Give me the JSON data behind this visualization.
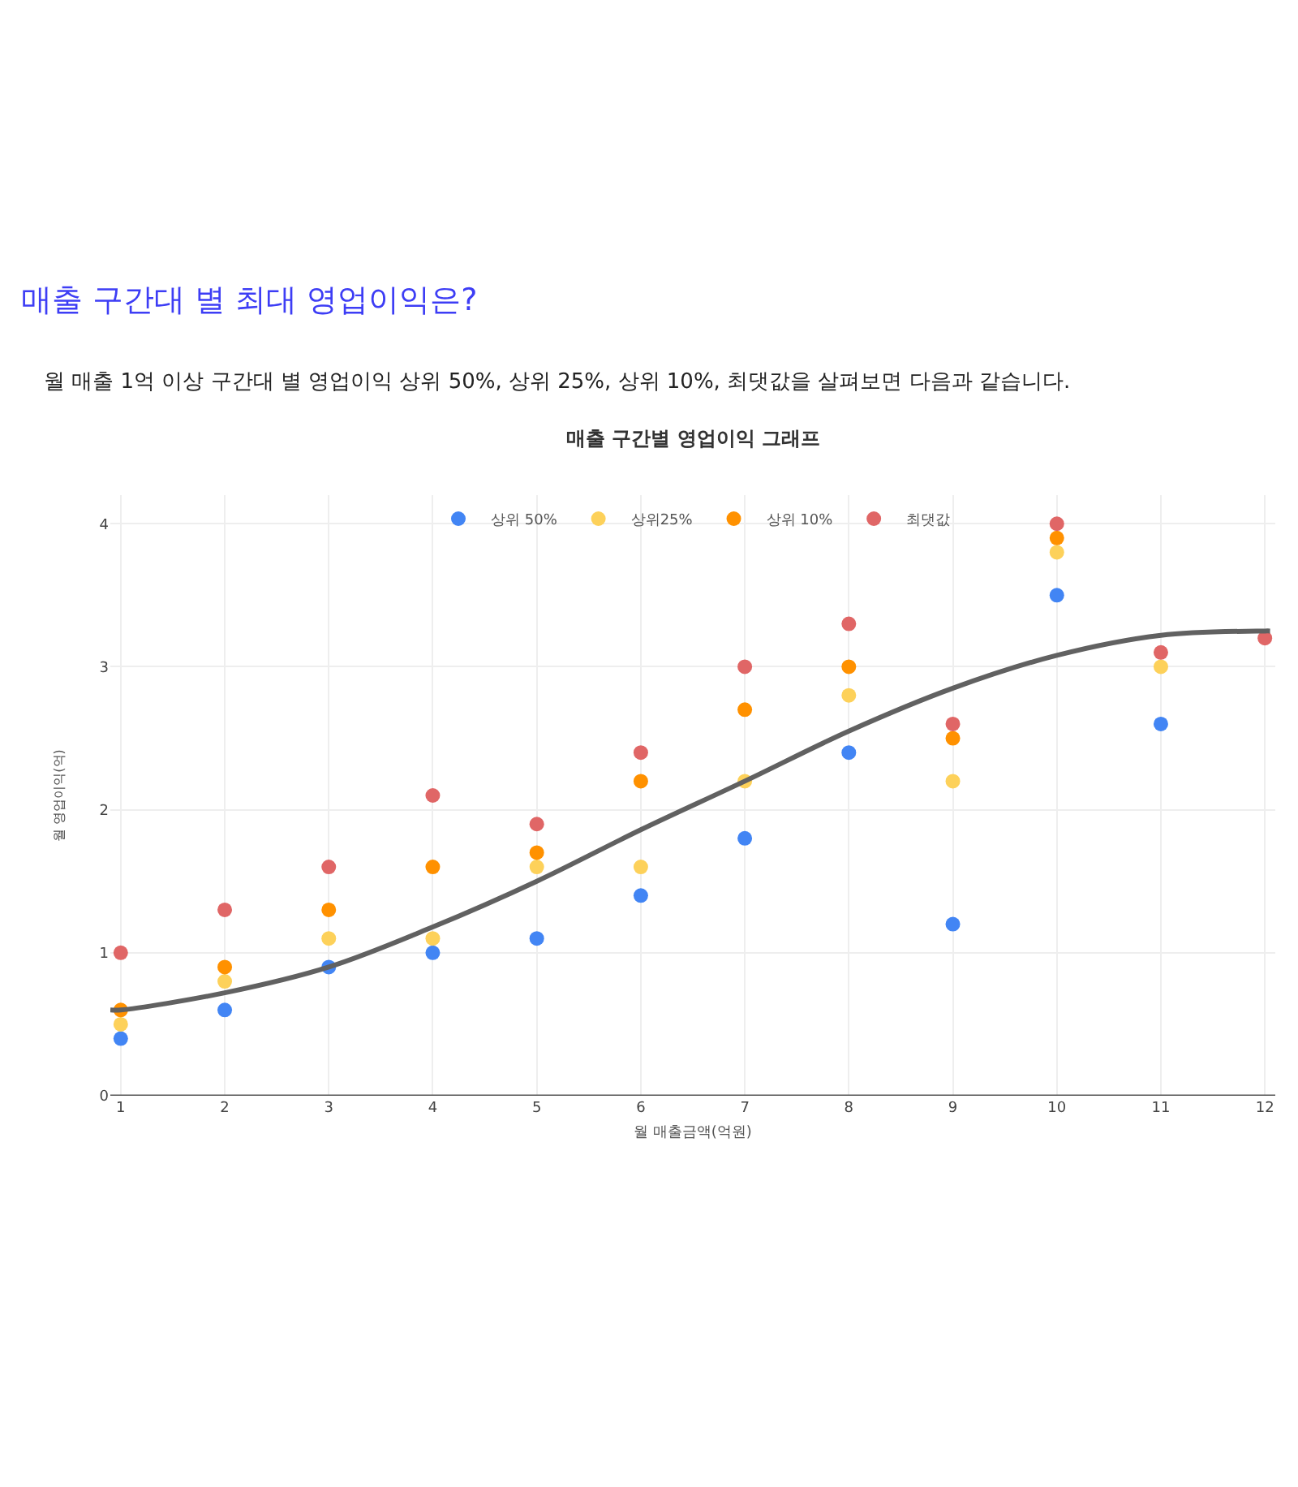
{
  "chart_data": {
    "type": "scatter",
    "title": "매출 구간대 별 최대 영업이익은?",
    "subtitle": "월 매출 1억 이상 구간대 별 영업이익 상위 50%, 상위 25%, 상위 10%, 최댓값을 살펴보면 다음과 같습니다.",
    "annotations": [
      "매출 구간별 영업이익 그래프"
    ],
    "xlabel": "월 매출금액(억원)",
    "ylabel": "월 영업이익(억)",
    "x": [
      1,
      2,
      3,
      4,
      5,
      6,
      7,
      8,
      9,
      10,
      11,
      12
    ],
    "series": [
      {
        "name": "상위 50%",
        "color": "#4285f4",
        "values": [
          0.4,
          0.6,
          0.9,
          1.0,
          1.1,
          1.4,
          1.8,
          2.4,
          1.2,
          3.5,
          2.6,
          null
        ]
      },
      {
        "name": "상위25%",
        "color": "#fdd15a",
        "values": [
          0.5,
          0.8,
          1.1,
          1.1,
          1.6,
          1.6,
          2.2,
          2.8,
          2.2,
          3.8,
          3.0,
          null
        ]
      },
      {
        "name": "상위 10%",
        "color": "#ff9100",
        "values": [
          0.6,
          0.9,
          1.3,
          1.6,
          1.7,
          2.2,
          2.7,
          3.0,
          2.5,
          3.9,
          null,
          null
        ]
      },
      {
        "name": "최댓값",
        "color": "#e06666",
        "values": [
          1.0,
          1.3,
          1.6,
          2.1,
          1.9,
          2.4,
          3.0,
          3.3,
          2.6,
          4.0,
          3.1,
          3.2
        ]
      },
      {
        "type": "line",
        "marker": "none",
        "color": "#616161",
        "x": [
          0.9,
          1,
          2,
          3,
          4,
          5,
          6,
          7,
          8,
          9,
          10,
          11,
          12,
          12.05
        ],
        "values": [
          0.6,
          0.6,
          0.72,
          0.9,
          1.18,
          1.5,
          1.86,
          2.2,
          2.55,
          2.85,
          3.08,
          3.22,
          3.25,
          3.25
        ]
      }
    ],
    "xlim": [
      0.9,
      12.1
    ],
    "xticks": [
      1,
      2,
      3,
      4,
      5,
      6,
      7,
      8,
      9,
      10,
      11,
      12
    ],
    "ylim": [
      0,
      4.2
    ],
    "yticks": [
      0,
      1,
      2,
      3,
      4
    ],
    "grid": true,
    "legend": "top",
    "marker": "circle"
  }
}
